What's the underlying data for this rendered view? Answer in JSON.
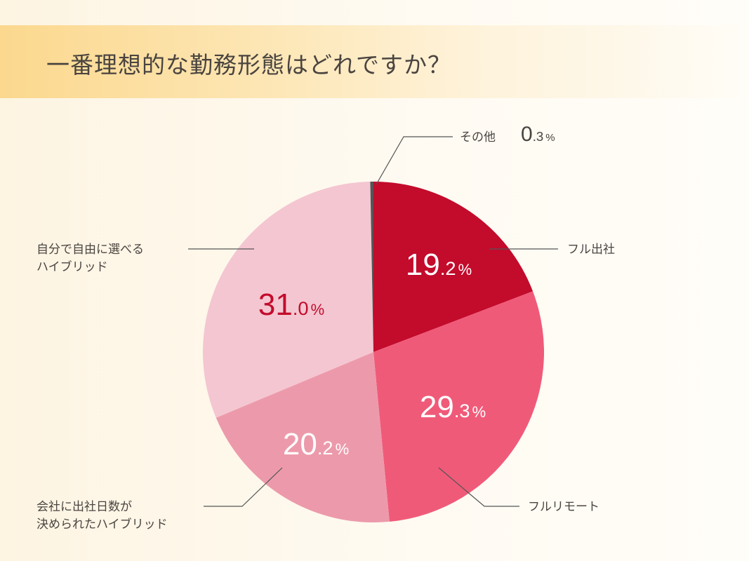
{
  "title": "一番理想的な勤務形態はどれですか？",
  "chart_data": {
    "type": "pie",
    "title": "一番理想的な勤務形態はどれですか？",
    "start": "top",
    "direction": "clockwise",
    "slices": [
      {
        "label": "フル出社",
        "value": 19.2,
        "color": "#c30b2c",
        "text_color": "#ffffff"
      },
      {
        "label": "フルリモート",
        "value": 29.3,
        "color": "#f05a79",
        "text_color": "#ffffff"
      },
      {
        "label_lines": [
          "会社に出社日数が",
          "決められたハイブリッド"
        ],
        "value": 20.2,
        "color": "#ec9aab",
        "text_color": "#ffffff"
      },
      {
        "label_lines": [
          "自分で自由に選べる",
          "ハイブリッド"
        ],
        "value": 31.0,
        "color": "#f4c6d1",
        "text_color": "#c30b2c"
      },
      {
        "label": "その他",
        "value": 0.3,
        "color": "#555555",
        "text_color": "#4a4440"
      }
    ]
  }
}
